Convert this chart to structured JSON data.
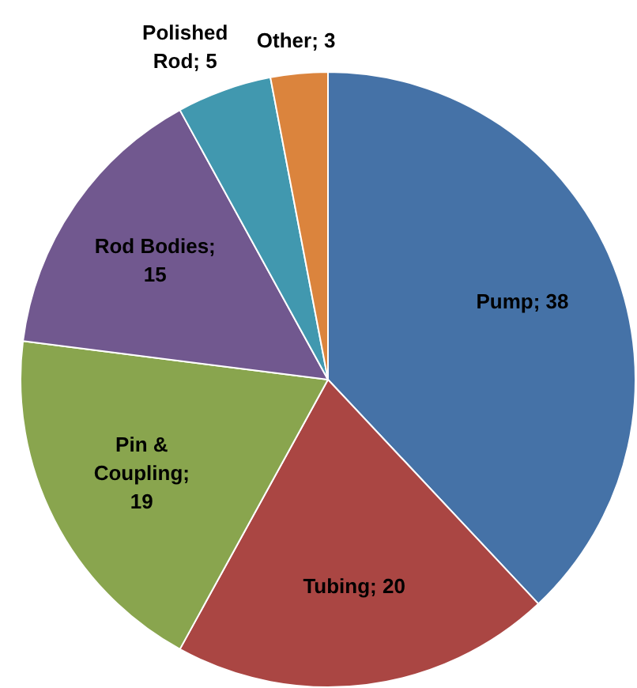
{
  "chart_data": {
    "type": "pie",
    "categories": [
      "Pump",
      "Tubing",
      "Pin & Coupling",
      "Rod Bodies",
      "Polished Rod",
      "Other"
    ],
    "values": [
      38,
      20,
      19,
      15,
      5,
      3
    ],
    "value_labels": [
      "; 38",
      "; 20",
      "; 19",
      "; 15",
      "; 5",
      "; 3"
    ],
    "colors": [
      "#4572a7",
      "#aa4643",
      "#89a54e",
      "#71588f",
      "#4198af",
      "#db843d"
    ],
    "legend": false
  }
}
